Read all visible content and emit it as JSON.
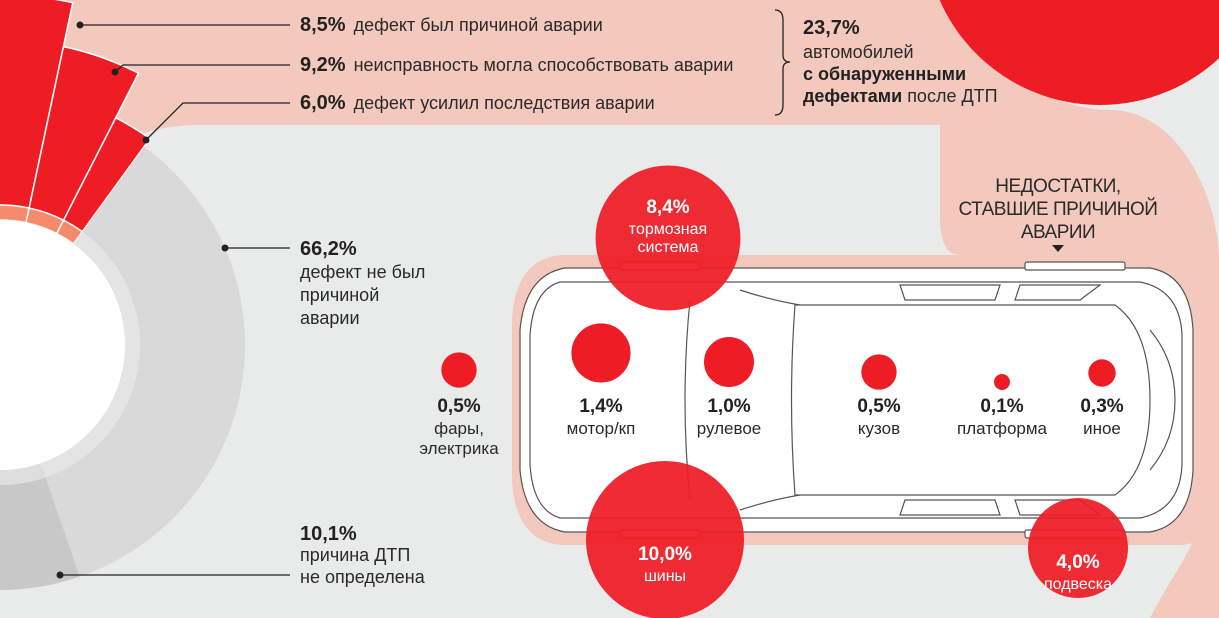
{
  "colors": {
    "background": "#e9ebea",
    "band": "#f4c9bd",
    "red": "#ee1c25",
    "salmon": "#f58a6c",
    "gray": "#d9d9d9",
    "dark_gray": "#c8c8c8"
  },
  "summary": {
    "value": "23,7%",
    "line1": "автомобилей",
    "line2": "с обнаруженными",
    "line3_bold": "дефектами",
    "line3_rest": " после ДТП"
  },
  "heading": {
    "line1": "НЕДОСТАТКИ,",
    "line2": "СТАВШИЕ ПРИЧИНОЙ",
    "line3": "АВАРИИ"
  },
  "chart_data": [
    {
      "type": "pie",
      "segments": [
        {
          "value": 8.5,
          "value_label": "8,5%",
          "label": "дефект был причиной аварии"
        },
        {
          "value": 9.2,
          "value_label": "9,2%",
          "label": "неисправность могла способствовать аварии"
        },
        {
          "value": 6.0,
          "value_label": "6,0%",
          "label": "дефект усилил последствия аварии"
        },
        {
          "value": 66.2,
          "value_label": "66,2%",
          "label_lines": [
            "дефект не был",
            "причиной",
            "аварии"
          ]
        },
        {
          "value": 10.1,
          "value_label": "10,1%",
          "label_lines": [
            "причина ДТП",
            "не определена"
          ]
        }
      ]
    },
    {
      "type": "scatter",
      "points": [
        {
          "value": 8.4,
          "value_label": "8,4%",
          "label_lines": [
            "тормозная",
            "система"
          ]
        },
        {
          "value": 10.0,
          "value_label": "10,0%",
          "label_lines": [
            "шины"
          ]
        },
        {
          "value": 4.0,
          "value_label": "4,0%",
          "label_lines": [
            "подвеска"
          ]
        },
        {
          "value": 0.5,
          "value_label": "0,5%",
          "label_lines": [
            "фары,",
            "электрика"
          ]
        },
        {
          "value": 1.4,
          "value_label": "1,4%",
          "label_lines": [
            "мотор/кп"
          ]
        },
        {
          "value": 1.0,
          "value_label": "1,0%",
          "label_lines": [
            "рулевое"
          ]
        },
        {
          "value": 0.5,
          "value_label": "0,5%",
          "label_lines": [
            "кузов"
          ]
        },
        {
          "value": 0.1,
          "value_label": "0,1%",
          "label_lines": [
            "платформа"
          ]
        },
        {
          "value": 0.3,
          "value_label": "0,3%",
          "label_lines": [
            "иное"
          ]
        }
      ]
    }
  ]
}
